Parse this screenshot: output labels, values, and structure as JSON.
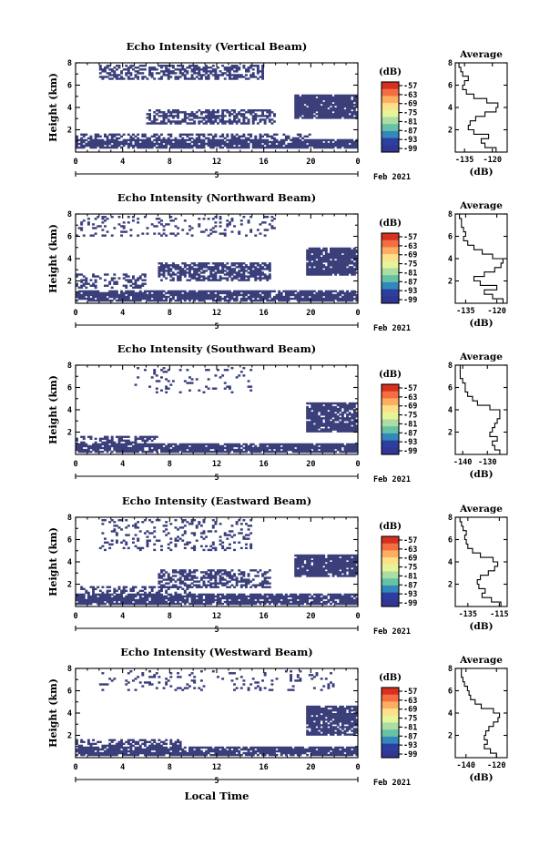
{
  "figure": {
    "date_label": "Feb 2021",
    "day_label": "5",
    "xlabel": "Local Time",
    "colorbar_label": "(dB)",
    "colorbar_ticks": [
      "-57",
      "-63",
      "-69",
      "-75",
      "-81",
      "-87",
      "-93",
      "-99"
    ],
    "colorbar_colors": [
      "#d7301f",
      "#f46d43",
      "#fdae61",
      "#fee08b",
      "#e6f598",
      "#abdda4",
      "#66c2a5",
      "#3288bd",
      "#2c3f9e",
      "#313695"
    ],
    "echo_color": "#3a3f7a"
  },
  "chart_data": [
    {
      "type": "heatmap",
      "title": "Echo Intensity (Vertical Beam)",
      "ylabel": "Height (km)",
      "x_ticks": [
        "0",
        "4",
        "8",
        "12",
        "16",
        "20",
        "0"
      ],
      "y_ticks": [
        "2",
        "4",
        "6",
        "8"
      ],
      "xlim": [
        0,
        24
      ],
      "ylim": [
        0,
        8
      ],
      "echo_regions": [
        {
          "t": [
            2,
            16
          ],
          "h": [
            6.5,
            7.9
          ],
          "coverage": 0.55
        },
        {
          "t": [
            0,
            24
          ],
          "h": [
            0.3,
            1.2
          ],
          "coverage": 0.85
        },
        {
          "t": [
            0,
            20
          ],
          "h": [
            1.2,
            1.6
          ],
          "coverage": 0.45
        },
        {
          "t": [
            6,
            17
          ],
          "h": [
            2.5,
            3.8
          ],
          "coverage": 0.6
        },
        {
          "t": [
            18.5,
            24
          ],
          "h": [
            3.0,
            5.2
          ],
          "coverage": 0.9
        }
      ],
      "profile": {
        "title": "Average",
        "xlabel": "(dB)",
        "x_ticks": [
          "-135",
          "-120"
        ],
        "xlim": [
          -140,
          -112
        ],
        "heights": [
          0.2,
          0.6,
          1.0,
          1.4,
          1.8,
          2.2,
          2.6,
          3.0,
          3.4,
          3.8,
          4.2,
          4.6,
          5.0,
          5.4,
          5.8,
          6.2,
          6.6,
          7.0,
          7.4,
          7.8
        ],
        "values": [
          -118,
          -124,
          -126,
          -122,
          -130,
          -133,
          -132,
          -129,
          -124,
          -118,
          -117,
          -123,
          -130,
          -134,
          -136,
          -135,
          -133,
          -136,
          -137,
          -138
        ]
      }
    },
    {
      "type": "heatmap",
      "title": "Echo Intensity (Northward Beam)",
      "ylabel": "Height (km)",
      "x_ticks": [
        "0",
        "4",
        "8",
        "12",
        "16",
        "20",
        "0"
      ],
      "y_ticks": [
        "2",
        "4",
        "6",
        "8"
      ],
      "xlim": [
        0,
        24
      ],
      "ylim": [
        0,
        8
      ],
      "echo_regions": [
        {
          "t": [
            0,
            17
          ],
          "h": [
            6.0,
            7.9
          ],
          "coverage": 0.18
        },
        {
          "t": [
            0,
            24
          ],
          "h": [
            0.2,
            1.1
          ],
          "coverage": 0.85
        },
        {
          "t": [
            0,
            6
          ],
          "h": [
            1.3,
            2.6
          ],
          "coverage": 0.35
        },
        {
          "t": [
            7,
            16.5
          ],
          "h": [
            2.0,
            3.6
          ],
          "coverage": 0.7
        },
        {
          "t": [
            19.5,
            24
          ],
          "h": [
            2.5,
            5.0
          ],
          "coverage": 0.9
        }
      ],
      "profile": {
        "title": "Average",
        "xlabel": "(dB)",
        "x_ticks": [
          "-135",
          "-120"
        ],
        "xlim": [
          -140,
          -115
        ],
        "heights": [
          0.2,
          0.6,
          1.0,
          1.4,
          1.8,
          2.2,
          2.6,
          3.0,
          3.4,
          3.8,
          4.2,
          4.6,
          5.0,
          5.4,
          5.8,
          6.2,
          6.6,
          7.0,
          7.4,
          7.8
        ],
        "values": [
          -117,
          -122,
          -126,
          -120,
          -128,
          -131,
          -126,
          -121,
          -118,
          -117,
          -122,
          -127,
          -131,
          -134,
          -136,
          -135,
          -136,
          -137,
          -137,
          -138
        ]
      }
    },
    {
      "type": "heatmap",
      "title": "Echo Intensity (Southward Beam)",
      "ylabel": "Height (km)",
      "x_ticks": [
        "0",
        "4",
        "8",
        "12",
        "16",
        "20",
        "0"
      ],
      "y_ticks": [
        "2",
        "4",
        "6",
        "8"
      ],
      "xlim": [
        0,
        24
      ],
      "ylim": [
        0,
        8
      ],
      "echo_regions": [
        {
          "t": [
            5,
            15
          ],
          "h": [
            5.5,
            7.9
          ],
          "coverage": 0.12
        },
        {
          "t": [
            0,
            24
          ],
          "h": [
            0.2,
            1.0
          ],
          "coverage": 0.85
        },
        {
          "t": [
            0,
            7
          ],
          "h": [
            1.0,
            1.6
          ],
          "coverage": 0.5
        },
        {
          "t": [
            19.5,
            24
          ],
          "h": [
            2.0,
            4.6
          ],
          "coverage": 0.85
        }
      ],
      "profile": {
        "title": "Average",
        "xlabel": "(dB)",
        "x_ticks": [
          "-140",
          "-130"
        ],
        "xlim": [
          -143,
          -122
        ],
        "heights": [
          0.2,
          0.6,
          1.0,
          1.4,
          1.8,
          2.2,
          2.6,
          3.0,
          3.4,
          3.8,
          4.2,
          4.6,
          5.0,
          5.4,
          5.8,
          6.2,
          6.6,
          7.0,
          7.4,
          7.8
        ],
        "values": [
          -125,
          -127,
          -128,
          -126,
          -129,
          -128,
          -127,
          -126,
          -125,
          -125,
          -129,
          -134,
          -136,
          -138,
          -139,
          -139,
          -140,
          -141,
          -141,
          -141
        ]
      }
    },
    {
      "type": "heatmap",
      "title": "Echo Intensity (Eastward Beam)",
      "ylabel": "Height (km)",
      "x_ticks": [
        "0",
        "4",
        "8",
        "12",
        "16",
        "20",
        "0"
      ],
      "y_ticks": [
        "2",
        "4",
        "6",
        "8"
      ],
      "xlim": [
        0,
        24
      ],
      "ylim": [
        0,
        8
      ],
      "echo_regions": [
        {
          "t": [
            2,
            15
          ],
          "h": [
            5.0,
            7.9
          ],
          "coverage": 0.2
        },
        {
          "t": [
            0,
            24
          ],
          "h": [
            0.2,
            1.1
          ],
          "coverage": 0.85
        },
        {
          "t": [
            0,
            10
          ],
          "h": [
            1.2,
            1.8
          ],
          "coverage": 0.4
        },
        {
          "t": [
            7,
            16.5
          ],
          "h": [
            1.6,
            3.4
          ],
          "coverage": 0.55
        },
        {
          "t": [
            18.5,
            24
          ],
          "h": [
            2.6,
            4.6
          ],
          "coverage": 0.9
        }
      ],
      "profile": {
        "title": "Average",
        "xlabel": "(dB)",
        "x_ticks": [
          "-135",
          "-115"
        ],
        "xlim": [
          -143,
          -110
        ],
        "heights": [
          0.2,
          0.6,
          1.0,
          1.4,
          1.8,
          2.2,
          2.6,
          3.0,
          3.4,
          3.8,
          4.2,
          4.6,
          5.0,
          5.4,
          5.8,
          6.2,
          6.6,
          7.0,
          7.4,
          7.8
        ],
        "values": [
          -114,
          -120,
          -126,
          -124,
          -128,
          -129,
          -127,
          -122,
          -118,
          -116,
          -119,
          -127,
          -132,
          -135,
          -136,
          -137,
          -136,
          -138,
          -139,
          -140
        ]
      }
    },
    {
      "type": "heatmap",
      "title": "Echo Intensity (Westward Beam)",
      "ylabel": "Height (km)",
      "x_ticks": [
        "0",
        "4",
        "8",
        "12",
        "16",
        "20",
        "0"
      ],
      "y_ticks": [
        "2",
        "4",
        "6",
        "8"
      ],
      "xlim": [
        0,
        24
      ],
      "ylim": [
        0,
        8
      ],
      "echo_regions": [
        {
          "t": [
            2,
            22
          ],
          "h": [
            6.0,
            7.9
          ],
          "coverage": 0.12
        },
        {
          "t": [
            0,
            24
          ],
          "h": [
            0.2,
            1.0
          ],
          "coverage": 0.85
        },
        {
          "t": [
            0,
            9
          ],
          "h": [
            1.0,
            1.6
          ],
          "coverage": 0.5
        },
        {
          "t": [
            19.5,
            24
          ],
          "h": [
            2.0,
            4.6
          ],
          "coverage": 0.85
        }
      ],
      "profile": {
        "title": "Average",
        "xlabel": "(dB)",
        "x_ticks": [
          "-140",
          "-120"
        ],
        "xlim": [
          -147,
          -113
        ],
        "heights": [
          0.2,
          0.6,
          1.0,
          1.4,
          1.8,
          2.2,
          2.6,
          3.0,
          3.4,
          3.8,
          4.2,
          4.6,
          5.0,
          5.4,
          5.8,
          6.2,
          6.6,
          7.0,
          7.4,
          7.8
        ],
        "values": [
          -120,
          -124,
          -128,
          -126,
          -128,
          -127,
          -125,
          -122,
          -119,
          -118,
          -122,
          -130,
          -134,
          -137,
          -138,
          -139,
          -141,
          -142,
          -143,
          -143
        ]
      }
    }
  ]
}
